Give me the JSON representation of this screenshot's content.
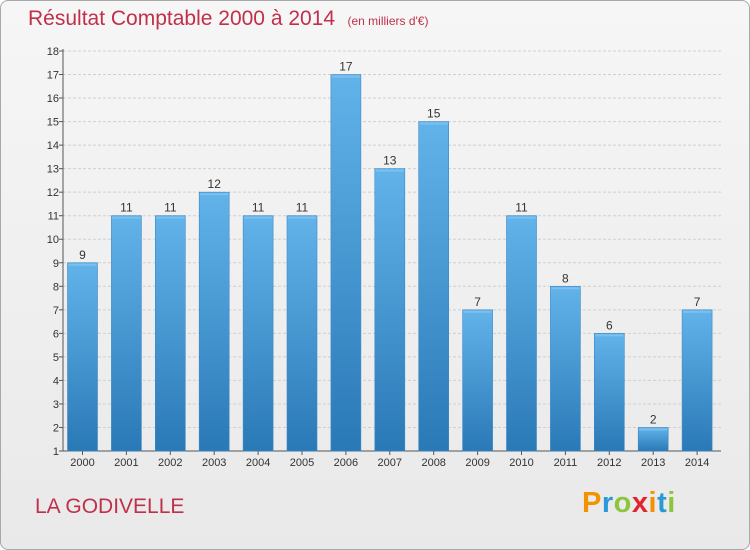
{
  "chart_data": {
    "type": "bar",
    "title": "Résultat Comptable 2000 à 2014",
    "subtitle": "(en milliers d'€)",
    "categories": [
      "2000",
      "2001",
      "2002",
      "2003",
      "2004",
      "2005",
      "2006",
      "2007",
      "2008",
      "2009",
      "2010",
      "2011",
      "2012",
      "2013",
      "2014"
    ],
    "values": [
      9,
      11,
      11,
      12,
      11,
      11,
      17,
      13,
      15,
      7,
      11,
      8,
      6,
      2,
      7
    ],
    "ylim": [
      1,
      18
    ],
    "yticks": [
      1,
      2,
      3,
      4,
      5,
      6,
      7,
      8,
      9,
      10,
      11,
      12,
      13,
      14,
      15,
      16,
      17,
      18
    ],
    "xlabel": "",
    "ylabel": "",
    "grid": true
  },
  "commune": "LA GODIVELLE",
  "logo": {
    "letters": [
      "P",
      "r",
      "o",
      "x",
      "i",
      "t",
      "i"
    ],
    "colors": [
      "#f39200",
      "#2a9ad6",
      "#8cc63f",
      "#e4222e",
      "#f39200",
      "#2a9ad6",
      "#8cc63f"
    ]
  },
  "colors": {
    "bar_light": "#62b3ea",
    "bar_dark": "#2a79b7",
    "title": "#c0304a"
  }
}
